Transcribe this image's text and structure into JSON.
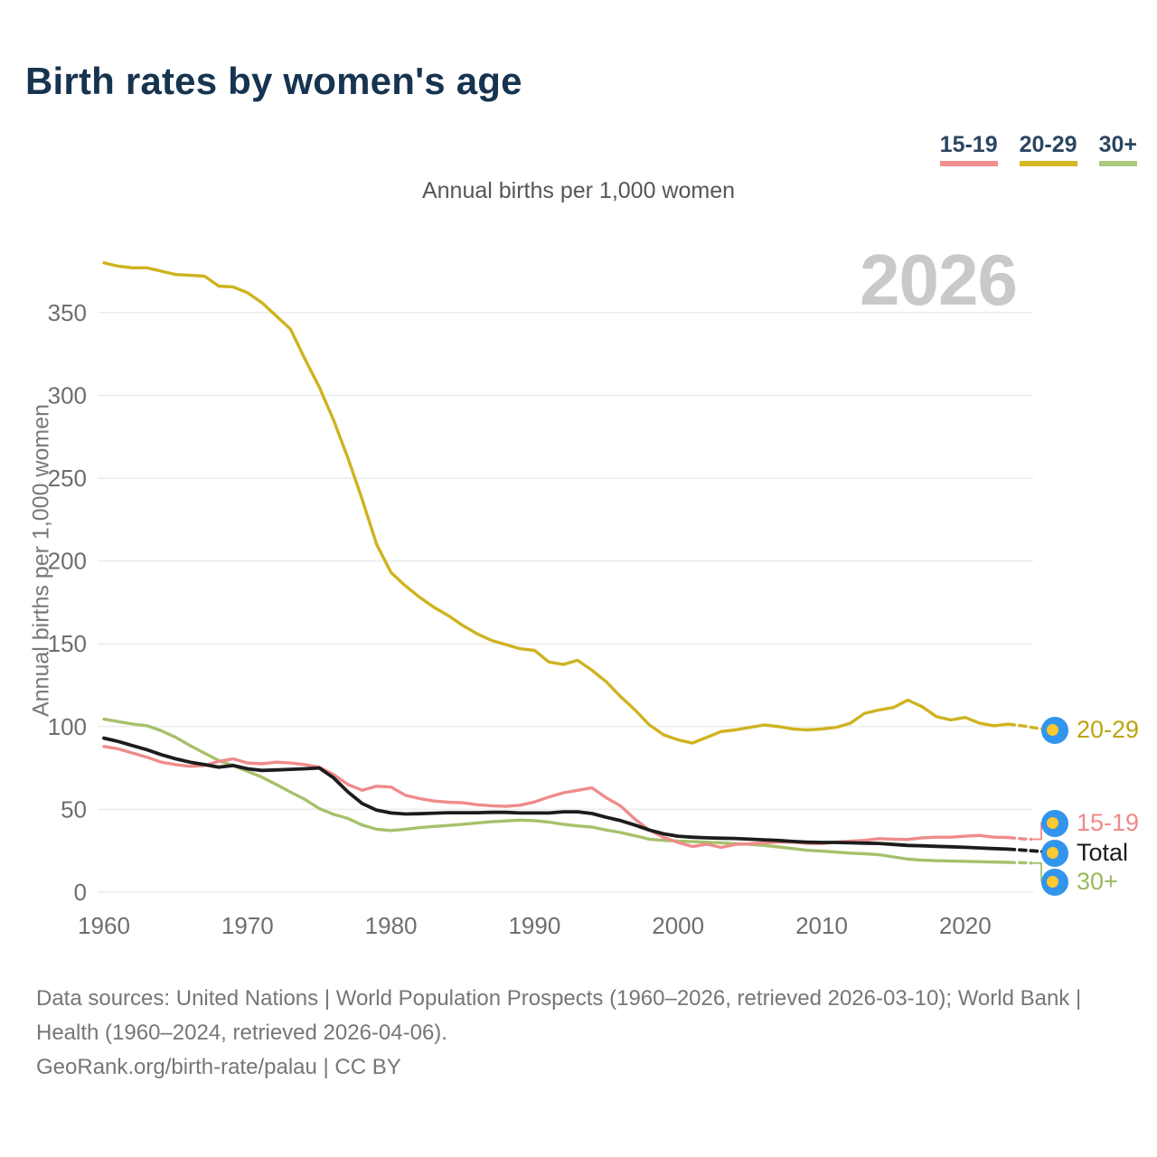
{
  "header": {
    "title": "Birth rates by women's age"
  },
  "legend": {
    "items": [
      {
        "label": "15-19",
        "color": "#f18f8f"
      },
      {
        "label": "20-29",
        "color": "#d6b822"
      },
      {
        "label": "30+",
        "color": "#aac87e"
      }
    ]
  },
  "subtitle": "Annual births per 1,000 women",
  "watermark": {
    "text": "2026"
  },
  "chart_data": {
    "type": "line",
    "title": "Birth rates by women's age",
    "unit_label": "Annual births per 1,000 women",
    "ylabel": "Annual births per 1,000 women",
    "xlabel": "",
    "xlim": [
      1960,
      2026
    ],
    "ylim": [
      0,
      385
    ],
    "grid": true,
    "legend_position": "top-right",
    "projection_dashed_from": 2023,
    "end_marker": "palau-flag-circle",
    "marker_colors": {
      "flag_blue": "#3295ec",
      "flag_yellow": "#fcc930"
    },
    "xticks": [
      1960,
      1970,
      1980,
      1990,
      2000,
      2010,
      2020
    ],
    "yticks": [
      0,
      50,
      100,
      150,
      200,
      250,
      300,
      350
    ],
    "x": [
      1960,
      1961,
      1962,
      1963,
      1964,
      1965,
      1966,
      1967,
      1968,
      1969,
      1970,
      1971,
      1972,
      1973,
      1974,
      1975,
      1976,
      1977,
      1978,
      1979,
      1980,
      1981,
      1982,
      1983,
      1984,
      1985,
      1986,
      1987,
      1988,
      1989,
      1990,
      1991,
      1992,
      1993,
      1994,
      1995,
      1996,
      1997,
      1998,
      1999,
      2000,
      2001,
      2002,
      2003,
      2004,
      2005,
      2006,
      2007,
      2008,
      2009,
      2010,
      2011,
      2012,
      2013,
      2014,
      2015,
      2016,
      2017,
      2018,
      2019,
      2020,
      2021,
      2022,
      2023,
      2024,
      2025,
      2026
    ],
    "series": [
      {
        "name": "20-29",
        "color": "#cfb320",
        "label_color": "#bda413",
        "values": [
          380,
          378,
          377,
          377,
          375,
          373,
          372.5,
          372,
          366,
          365.5,
          362,
          356,
          348,
          340,
          322,
          305,
          285,
          262,
          237,
          210,
          193,
          185,
          178,
          172,
          167,
          161,
          156,
          152,
          149.5,
          147,
          146,
          139,
          137.5,
          140,
          134,
          127,
          118,
          110,
          101,
          95,
          92,
          90,
          93.5,
          97,
          98,
          99.5,
          101,
          100,
          98.5,
          98,
          98.5,
          99.5,
          102,
          108,
          110,
          111.5,
          116,
          112,
          106,
          104,
          105.5,
          102,
          100.5,
          101.5,
          100.5,
          99,
          98
        ]
      },
      {
        "name": "15-19",
        "color": "#ef8b8b",
        "label_color": "#ef8989",
        "values": [
          88,
          86.5,
          84,
          81.5,
          78.5,
          77,
          76,
          76.5,
          79,
          80.5,
          78,
          77.5,
          78.5,
          78,
          77,
          75.5,
          71,
          65,
          61.5,
          64,
          63.5,
          58.5,
          56.5,
          55,
          54.3,
          54,
          52.8,
          52.2,
          51.8,
          52.5,
          54.5,
          57.5,
          60,
          61.5,
          63,
          57,
          52,
          44,
          37.5,
          33,
          30,
          27.5,
          29,
          27,
          28.8,
          29.2,
          29.8,
          30.2,
          30.2,
          29.5,
          29.3,
          30.2,
          30.8,
          31.3,
          32.3,
          32,
          31.8,
          32.8,
          33.2,
          33.2,
          33.8,
          34.2,
          33.2,
          33,
          32.2,
          31.8,
          31.2
        ]
      },
      {
        "name": "Total",
        "color": "#1c1c1c",
        "label_color": "#1c1c1c",
        "values": [
          93,
          91,
          88.5,
          86,
          83,
          80.5,
          78.5,
          77,
          75.5,
          76.5,
          74.5,
          73.5,
          73.8,
          74.2,
          74.5,
          75,
          69,
          60.5,
          53.5,
          49.5,
          47.8,
          47.2,
          47.4,
          47.7,
          48,
          48,
          48,
          48.2,
          48.2,
          47.8,
          47.8,
          47.8,
          48.5,
          48.5,
          47.5,
          45.2,
          43.2,
          40.5,
          37.5,
          35.2,
          33.8,
          33.2,
          32.8,
          32.6,
          32.4,
          32,
          31.6,
          31.2,
          30.6,
          30.2,
          30,
          30,
          29.8,
          29.6,
          29.4,
          28.8,
          28.2,
          28,
          27.7,
          27.4,
          27.1,
          26.7,
          26.3,
          26,
          25.4,
          24.8,
          24.2
        ]
      },
      {
        "name": "30+",
        "color": "#a6c16c",
        "label_color": "#9cb95c",
        "values": [
          104.5,
          103,
          101.5,
          100.5,
          97.5,
          93.5,
          88.5,
          84,
          79.5,
          76.5,
          73,
          69.5,
          65,
          60.5,
          56,
          50.5,
          47,
          44.5,
          40.5,
          38,
          37.2,
          38,
          39,
          39.7,
          40.3,
          41,
          41.8,
          42.5,
          43,
          43.5,
          43.2,
          42.3,
          41,
          40,
          39.3,
          37.5,
          36,
          34,
          32,
          31.3,
          30.8,
          30.5,
          30.2,
          29.8,
          29.3,
          28.8,
          28.2,
          27.3,
          26.3,
          25.3,
          24.8,
          24.2,
          23.6,
          23.2,
          22.6,
          21.3,
          20,
          19.3,
          19,
          18.8,
          18.6,
          18.4,
          18.2,
          18,
          17.8,
          17.4,
          16.8
        ]
      }
    ]
  },
  "footer": {
    "sources": "Data sources: United Nations | World Population Prospects (1960–2026, retrieved 2026-03-10); World Bank | Health (1960–2024, retrieved 2026-04-06).",
    "attribution": "GeoRank.org/birth-rate/palau | CC BY"
  }
}
